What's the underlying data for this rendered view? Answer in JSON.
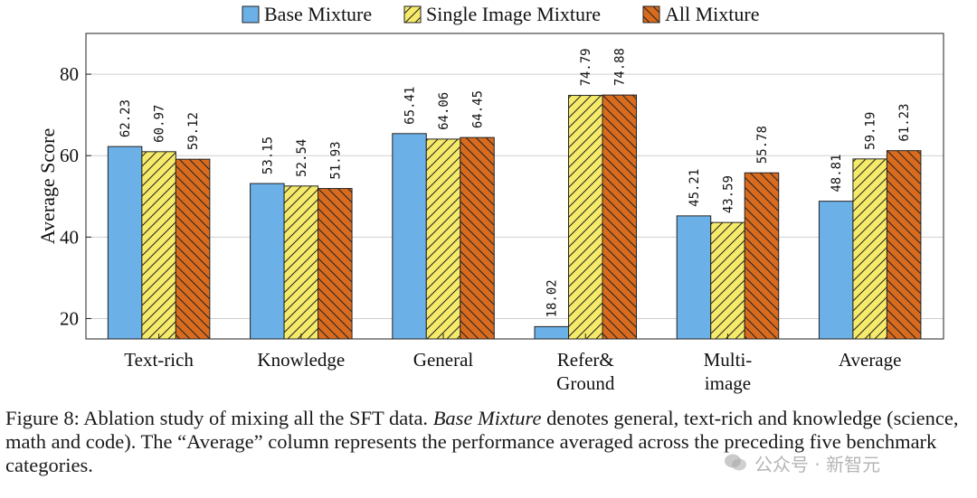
{
  "chart_data": {
    "type": "bar",
    "ylabel": "Average Score",
    "ylim": [
      15,
      90
    ],
    "yticks": [
      20,
      40,
      60,
      80
    ],
    "grid": true,
    "legend_position": "top-center",
    "categories": [
      [
        "Text-rich"
      ],
      [
        "Knowledge"
      ],
      [
        "General"
      ],
      [
        "Refer&",
        "Ground"
      ],
      [
        "Multi-",
        "image"
      ],
      [
        "Average"
      ]
    ],
    "series": [
      {
        "name": "Base Mixture",
        "color": "#6cb0e8",
        "pattern": "solid",
        "values": [
          62.23,
          53.15,
          65.41,
          18.02,
          45.21,
          48.81
        ]
      },
      {
        "name": "Single Image Mixture",
        "color": "#f6ea6a",
        "pattern": "hatch-forward",
        "values": [
          60.97,
          52.54,
          64.06,
          74.79,
          43.59,
          59.19
        ]
      },
      {
        "name": "All Mixture",
        "color": "#d96b1e",
        "pattern": "hatch-backward",
        "values": [
          59.12,
          51.93,
          64.45,
          74.88,
          55.78,
          61.23
        ]
      }
    ]
  },
  "caption": {
    "prefix": "Figure 8: Ablation study of mixing all the SFT data. ",
    "emph": "Base Mixture",
    "suffix": " denotes general, text-rich and knowledge (science, math and code). The “Average” column represents the performance averaged across the preceding five benchmark categories."
  },
  "watermark": {
    "text": "公众号 · 新智元",
    "icon": "wechat-icon"
  }
}
